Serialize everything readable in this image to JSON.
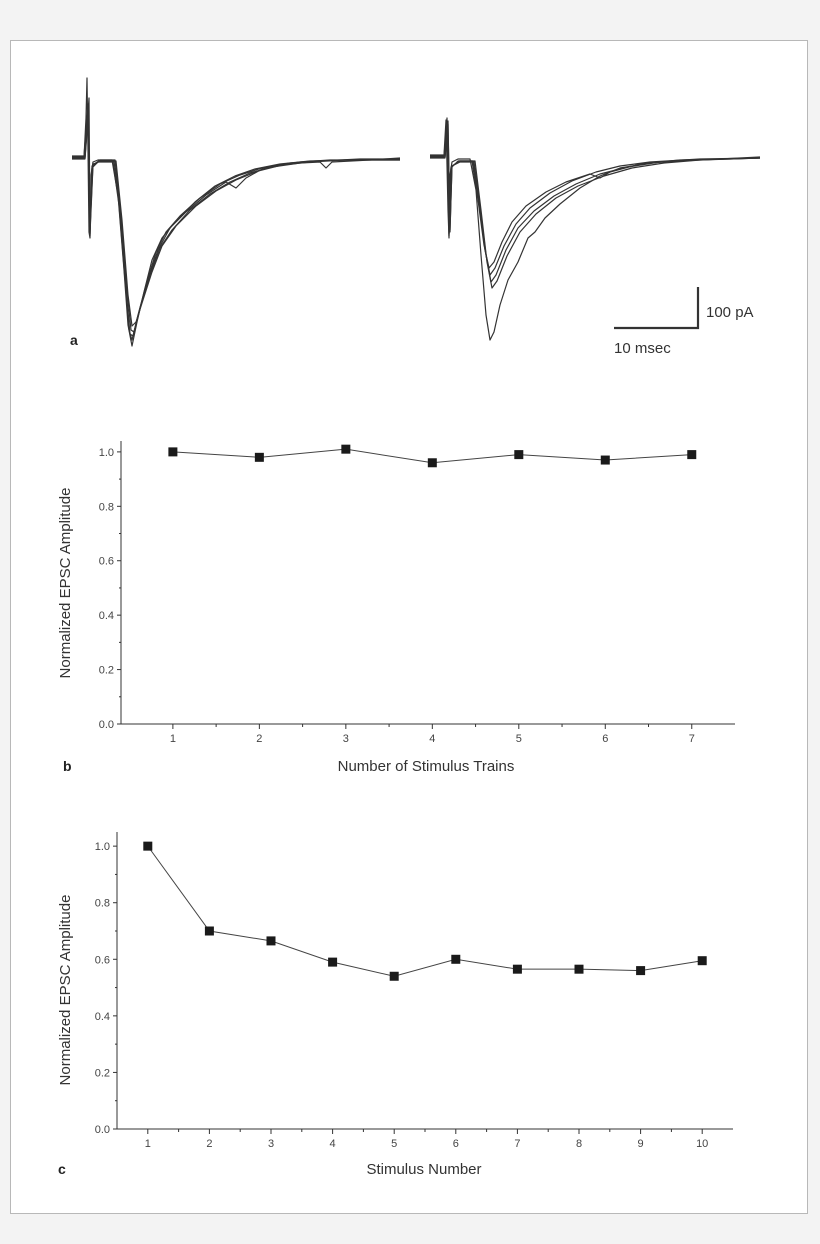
{
  "panels": {
    "a": {
      "letter": "a",
      "scale_bar": {
        "amplitude_label": "100 pA",
        "time_label": "10 msec"
      }
    },
    "b": {
      "letter": "b"
    },
    "c": {
      "letter": "c"
    }
  },
  "chart_data": [
    {
      "type": "line",
      "panel": "b",
      "xlabel": "Number of Stimulus Trains",
      "ylabel": "Normalized EPSC Amplitude",
      "x": [
        1,
        2,
        3,
        4,
        5,
        6,
        7
      ],
      "x_tick_labels": [
        "1",
        "2",
        "3",
        "4",
        "5",
        "6",
        "7"
      ],
      "y_tick_labels": [
        "0.0",
        "0.2",
        "0.4",
        "0.6",
        "0.8",
        "1.0"
      ],
      "y_ticks": [
        0,
        0.2,
        0.4,
        0.6,
        0.8,
        1.0
      ],
      "series": [
        {
          "values": [
            1.0,
            0.98,
            1.01,
            0.96,
            0.99,
            0.97,
            0.99
          ],
          "marker": "square"
        }
      ],
      "xlim": [
        0.4,
        7.5
      ],
      "ylim": [
        0,
        1.04
      ],
      "grid": false,
      "color": "#1a1a1a"
    },
    {
      "type": "line",
      "panel": "c",
      "xlabel": "Stimulus Number",
      "ylabel": "Normalized EPSC Amplitude",
      "x": [
        1,
        2,
        3,
        4,
        5,
        6,
        7,
        8,
        9,
        10
      ],
      "x_tick_labels": [
        "1",
        "2",
        "3",
        "4",
        "5",
        "6",
        "7",
        "8",
        "9",
        "10"
      ],
      "y_tick_labels": [
        "0.0",
        "0.2",
        "0.4",
        "0.6",
        "0.8",
        "1.0"
      ],
      "y_ticks": [
        0,
        0.2,
        0.4,
        0.6,
        0.8,
        1.0
      ],
      "series": [
        {
          "values": [
            1.0,
            0.7,
            0.665,
            0.59,
            0.54,
            0.6,
            0.565,
            0.565,
            0.56,
            0.595
          ],
          "marker": "square"
        }
      ],
      "xlim": [
        0.5,
        10.5
      ],
      "ylim": [
        0,
        1.05
      ],
      "grid": false,
      "color": "#1a1a1a"
    }
  ]
}
